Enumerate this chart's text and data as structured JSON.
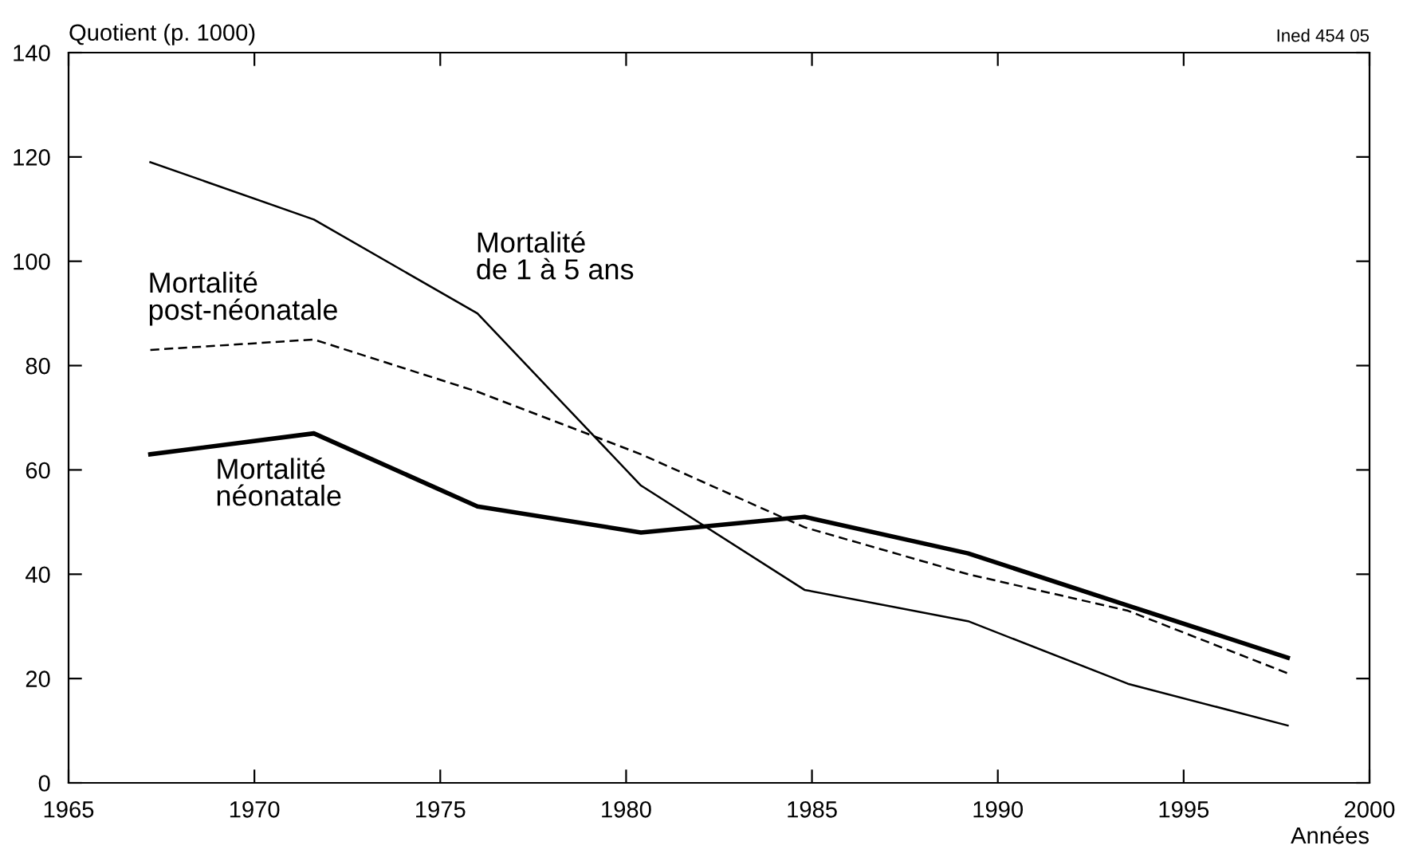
{
  "chart_data": {
    "type": "line",
    "xlabel": "Années",
    "ylabel": "Quotient (p. 1000)",
    "annotations": [
      "Ined 454 05"
    ],
    "series": [
      {
        "name": "Mortalité\nde 1 à 5 ans",
        "color": "#000000",
        "line_style": "solid",
        "x": [
          1967.2,
          1971.6,
          1976.0,
          1980.4,
          1984.8,
          1989.2,
          1993.5,
          1997.8
        ],
        "values": [
          119,
          108,
          90,
          57,
          37,
          31,
          19,
          11
        ]
      },
      {
        "name": "Mortalité\npost-néonatale",
        "color": "#000000",
        "line_style": "dashed",
        "x": [
          1967.2,
          1971.6,
          1976.0,
          1980.4,
          1984.8,
          1989.2,
          1993.5,
          1997.8
        ],
        "values": [
          83,
          85,
          75,
          63,
          49,
          40,
          33,
          21
        ]
      },
      {
        "name": "Mortalité\nnéonatale",
        "color": "#000000",
        "line_style": "solid",
        "x": [
          1967.2,
          1971.6,
          1976.0,
          1980.4,
          1984.8,
          1989.2,
          1993.5,
          1997.8
        ],
        "values": [
          63,
          67,
          53,
          48,
          51,
          44,
          34,
          24
        ]
      }
    ],
    "xlim": [
      1965,
      2000
    ],
    "xticks": [
      1965,
      1970,
      1975,
      1980,
      1985,
      1990,
      1995,
      2000
    ],
    "ylim": [
      0,
      140
    ],
    "yticks": [
      0,
      20,
      40,
      60,
      80,
      100,
      120,
      140
    ],
    "grid": false,
    "legend": false,
    "marker": "none"
  }
}
